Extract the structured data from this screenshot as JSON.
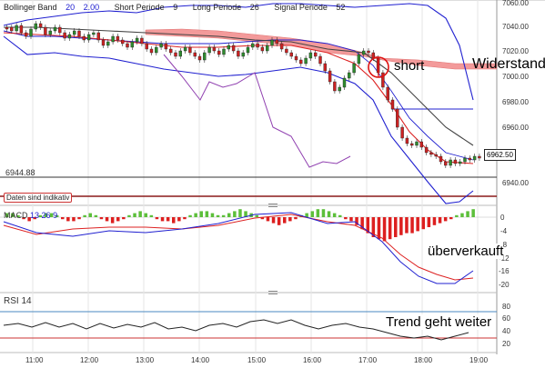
{
  "indicator_header": {
    "name": "Bollinger Band",
    "value1": "20",
    "value2": "2.00",
    "short_label": "Short Periode",
    "short_value": "9",
    "long_label": "Long Periode",
    "long_value": "26",
    "signal_label": "Signal Periode",
    "signal_value": "52"
  },
  "price_axis": [
    "7060.00",
    "7040.00",
    "7020.00",
    "7000.00",
    "6980.00",
    "6960.00",
    "6940.00"
  ],
  "price_level_label": "6944.88",
  "current_price": "6962.50",
  "warning_label": "Daten sind indikativ",
  "macd": {
    "label": "MACD",
    "param1": "13",
    "param2": "26",
    "param3": "9",
    "axis": [
      "0",
      "-4",
      "-8",
      "-12",
      "-16",
      "-20"
    ]
  },
  "rsi": {
    "label": "RSI",
    "period": "14",
    "axis": [
      "80",
      "60",
      "40",
      "20"
    ]
  },
  "time_axis": [
    "11:00",
    "12:00",
    "13:00",
    "14:00",
    "15:00",
    "16:00",
    "17:00",
    "18:00",
    "19:00"
  ],
  "annotations": {
    "short": "short",
    "widerstand": "Widerstand",
    "ueberverkauft": "überverkauft",
    "trend": "Trend geht weiter"
  },
  "colors": {
    "candle_up": "#2e8b2e",
    "candle_down": "#cc2222",
    "bollinger": "#2020d0",
    "cloud": "#f08080",
    "signal_line": "#dd2222",
    "long_line": "#444444",
    "purple_line": "#9040b0",
    "rsi_band": "#4a8ac0"
  }
}
